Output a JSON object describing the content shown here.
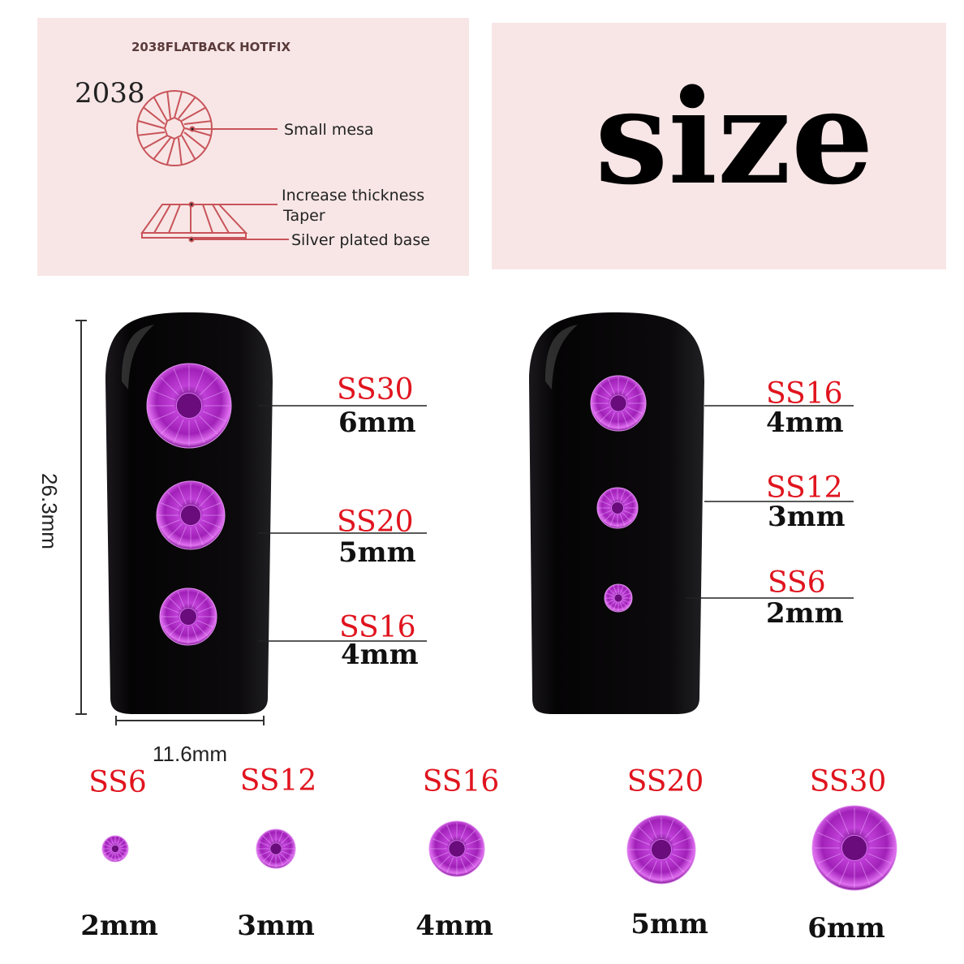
{
  "diagram_panel": {
    "header": "2038FLATBACK HOTFIX",
    "model": "2038",
    "callouts": [
      "Small mesa",
      "Increase thickness",
      "Taper",
      "Silver plated base"
    ],
    "line_color": "#c8545a",
    "background": "#f8e6e6"
  },
  "title_panel": {
    "title": "size",
    "background": "#f8e6e6"
  },
  "dimensions": {
    "height": "26.3mm",
    "width": "11.6mm"
  },
  "nail_left": [
    {
      "code": "SS30",
      "size": "6mm"
    },
    {
      "code": "SS20",
      "size": "5mm"
    },
    {
      "code": "SS16",
      "size": "4mm"
    }
  ],
  "nail_right": [
    {
      "code": "SS16",
      "size": "4mm"
    },
    {
      "code": "SS12",
      "size": "3mm"
    },
    {
      "code": "SS6",
      "size": "2mm"
    }
  ],
  "bottom_row": [
    {
      "code": "SS6",
      "size": "2mm"
    },
    {
      "code": "SS12",
      "size": "3mm"
    },
    {
      "code": "SS16",
      "size": "4mm"
    },
    {
      "code": "SS20",
      "size": "5mm"
    },
    {
      "code": "SS30",
      "size": "6mm"
    }
  ],
  "colors": {
    "gem": "#b02cc8",
    "code_text": "#e0141e",
    "nail": "#0c0a0c"
  }
}
